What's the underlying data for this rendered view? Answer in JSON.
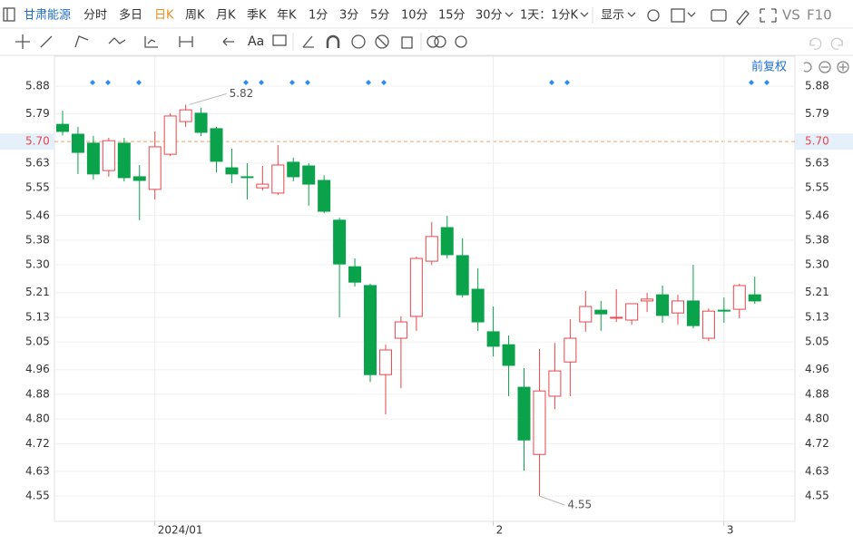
{
  "toolbar": {
    "stock": "甘肃能源",
    "periods": [
      "分时",
      "多日",
      "日K",
      "周K",
      "月K",
      "季K",
      "年K",
      "1分",
      "3分",
      "5分",
      "10分",
      "15分",
      "30分"
    ],
    "interval": "1天：1分K",
    "display": "显示",
    "vs": "VS",
    "f10": "F10",
    "text_tool": "Aa",
    "adjust": "前复权"
  },
  "chart_data": {
    "type": "candlestick",
    "categories": [
      null,
      null,
      null,
      null,
      null,
      null,
      "2024/01",
      null,
      null,
      null,
      null,
      null,
      null,
      null,
      null,
      null,
      null,
      null,
      null,
      null,
      null,
      null,
      null,
      null,
      null,
      null,
      null,
      null,
      "2",
      null,
      null,
      null,
      null,
      null,
      null,
      null,
      null,
      null,
      null,
      null,
      null,
      null,
      null,
      "3",
      null,
      null
    ],
    "open": [
      5.756,
      5.724,
      5.695,
      5.606,
      5.695,
      5.586,
      5.545,
      5.659,
      5.765,
      5.792,
      5.742,
      5.615,
      5.586,
      5.55,
      5.533,
      5.633,
      5.621,
      5.574,
      5.445,
      5.294,
      5.233,
      4.944,
      5.062,
      5.133,
      5.312,
      5.421,
      5.33,
      5.221,
      5.083,
      5.041,
      4.903,
      4.685,
      4.874,
      4.985,
      5.115,
      5.153,
      5.127,
      5.121,
      5.183,
      5.203,
      5.144,
      5.183,
      5.062,
      5.153,
      5.156,
      5.203
    ],
    "high": [
      5.8,
      5.748,
      5.718,
      5.712,
      5.712,
      5.624,
      5.733,
      5.792,
      5.82,
      5.81,
      5.748,
      5.677,
      5.63,
      5.621,
      5.689,
      5.648,
      5.63,
      5.591,
      5.453,
      5.321,
      5.239,
      5.041,
      5.133,
      5.327,
      5.439,
      5.459,
      5.386,
      5.289,
      5.165,
      5.071,
      4.965,
      5.027,
      5.047,
      5.124,
      5.215,
      5.183,
      5.221,
      5.174,
      5.209,
      5.233,
      5.203,
      5.3,
      5.159,
      5.194,
      5.239,
      5.262
    ],
    "low": [
      5.72,
      5.595,
      5.577,
      5.586,
      5.571,
      5.445,
      5.512,
      5.653,
      5.748,
      5.718,
      5.6,
      5.565,
      5.512,
      5.542,
      5.527,
      5.571,
      5.492,
      5.468,
      5.13,
      5.23,
      4.92,
      4.815,
      4.9,
      5.086,
      5.3,
      5.321,
      5.194,
      5.086,
      5.003,
      4.874,
      4.632,
      4.55,
      4.832,
      4.874,
      5.083,
      5.086,
      5.115,
      5.106,
      5.147,
      5.112,
      5.106,
      5.094,
      5.053,
      5.112,
      5.127,
      5.174
    ],
    "close": [
      5.733,
      5.665,
      5.595,
      5.703,
      5.583,
      5.574,
      5.683,
      5.783,
      5.803,
      5.73,
      5.636,
      5.595,
      5.583,
      5.562,
      5.624,
      5.586,
      5.562,
      5.474,
      5.303,
      5.244,
      4.944,
      5.024,
      5.115,
      5.321,
      5.392,
      5.333,
      5.203,
      5.115,
      5.036,
      4.974,
      4.732,
      4.891,
      4.956,
      5.062,
      5.165,
      5.141,
      5.13,
      5.174,
      5.189,
      5.136,
      5.183,
      5.103,
      5.15,
      5.15,
      5.233,
      5.183
    ],
    "up_color": "#e8474c",
    "down_color": "#0aa24a",
    "ylim": [
      4.468,
      5.977
    ],
    "yticks": [
      5.88,
      5.79,
      {
        "value": 5.7,
        "label": "5.70"
      },
      5.63,
      5.55,
      5.46,
      5.38,
      {
        "value": 5.3,
        "label": "5.30"
      },
      5.21,
      5.13,
      5.05,
      4.96,
      4.88,
      {
        "value": 4.8,
        "label": "4.80"
      },
      4.72,
      4.63,
      4.55
    ],
    "current_price": {
      "value": 5.7,
      "label": "5.70"
    },
    "max_label": 5.82,
    "min_label": 4.55,
    "grid": true
  }
}
